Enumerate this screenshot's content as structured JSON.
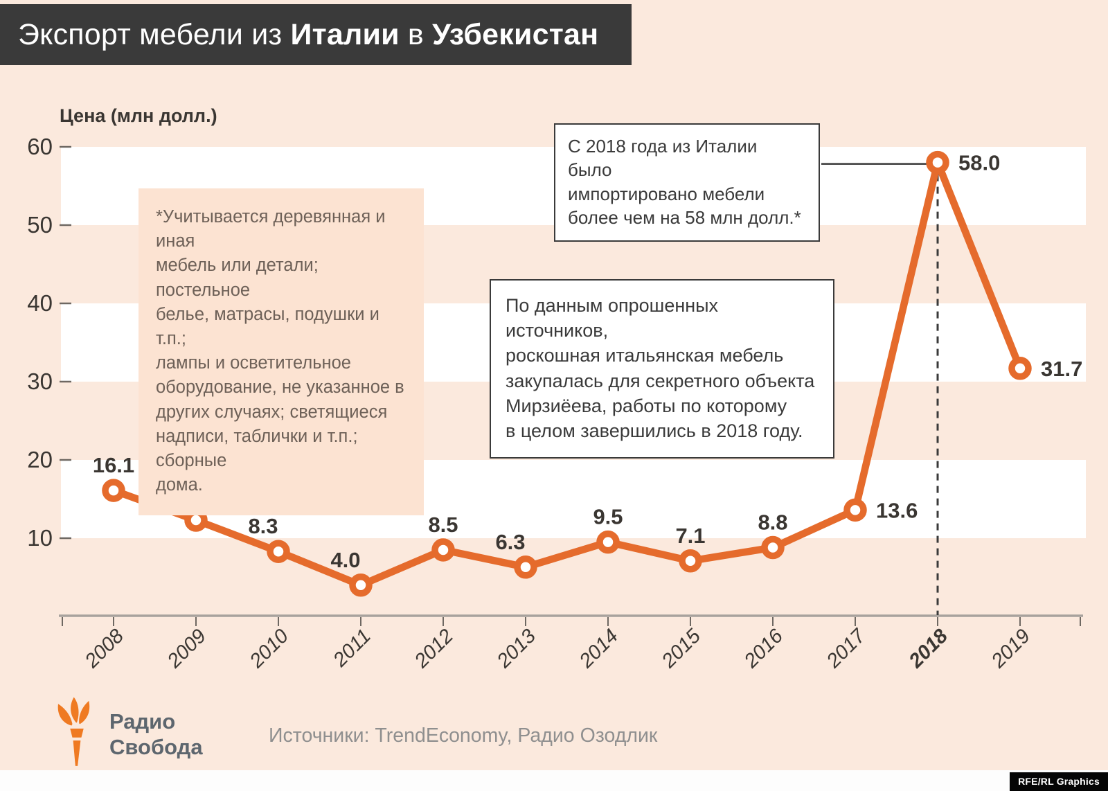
{
  "title": {
    "part1": "Экспорт мебели из ",
    "bold1": "Италии",
    "part2": " в ",
    "bold2": "Узбекистан"
  },
  "note": "*Учитывается деревянная и иная\nмебель или детали; постельное\nбелье, матрасы, подушки и т.п.;\nлампы и осветительное\nоборудование, не указанное в\nдругих случаях; светящиеся\nнадписи, таблички и т.п.; сборные\nдома.",
  "callout_peak": "С 2018 года из Италии было\nимпортировано мебели\nболее чем на 58 млн долл.*",
  "callout_info": "По данным опрошенных источников,\nроскошная итальянская мебель\nзакупалась для секретного объекта\nМирзиёева, работы по которому\nв целом завершились в 2018 году.",
  "footer": {
    "logo_line1": "Радио",
    "logo_line2": "Свобода",
    "sources": "Источники: TrendEconomy, Радио Озодлик",
    "credit": "RFE/RL Graphics"
  },
  "colors": {
    "background": "#fbe9dd",
    "stripe_white": "#ffffff",
    "note_bg": "#fce3d2",
    "banner_bg": "#3a3a3a",
    "line_orange": "#e56b2c",
    "text_dark": "#3a3632",
    "note_text": "#6d6057",
    "axis_gray": "#a8a29d",
    "sources_gray": "#8f8f8f",
    "logo_gray": "#5d666e",
    "logo_orange": "#ef7a22"
  },
  "chart_data": {
    "type": "line",
    "title": "Экспорт мебели из Италии в Узбекистан",
    "ylabel": "Цена (млн долл.)",
    "xlabel": "",
    "categories": [
      "2008",
      "2009",
      "2010",
      "2011",
      "2012",
      "2013",
      "2014",
      "2015",
      "2016",
      "2017",
      "2018",
      "2019"
    ],
    "values": [
      16.1,
      12.3,
      8.3,
      4.0,
      8.5,
      6.3,
      9.5,
      7.1,
      8.8,
      13.6,
      58.0,
      31.7
    ],
    "labels": [
      "16.1",
      "12.3",
      "8.3",
      "4.0",
      "8.5",
      "6.3",
      "9.5",
      "7.1",
      "8.8",
      "13.6",
      "58.0",
      "31.7"
    ],
    "label_pos": [
      "top",
      "top",
      "top-left",
      "top-left",
      "top",
      "top-left",
      "top",
      "top",
      "top",
      "right",
      "right",
      "right"
    ],
    "emphasized_categories": [
      "2018"
    ],
    "yticks": [
      60,
      50,
      40,
      30,
      20,
      10
    ],
    "ylim": [
      0,
      62
    ],
    "white_bands": [
      [
        10,
        20
      ],
      [
        30,
        40
      ],
      [
        50,
        60
      ]
    ],
    "grid": "alternating horizontal bands, no gridlines",
    "legend": "none",
    "annotations": {
      "dashed_line_at": "2018",
      "callout_connects_to": "2018"
    }
  }
}
